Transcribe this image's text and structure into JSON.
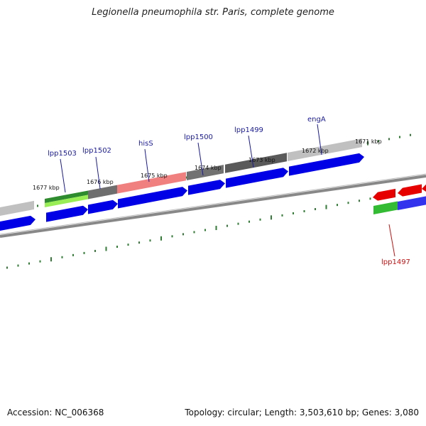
{
  "title": "Legionella pneumophila str. Paris, complete genome",
  "footer": {
    "accession": "Accession: NC_006368",
    "summary": "Topology: circular; Length: 3,503,610 bp; Genes: 3,080"
  },
  "kbp_labels": [
    {
      "kbp": 1671,
      "text": "1671 kbp"
    },
    {
      "kbp": 1672,
      "text": "1672 kbp"
    },
    {
      "kbp": 1673,
      "text": "1673 kbp"
    },
    {
      "kbp": 1674,
      "text": "1674 kbp"
    },
    {
      "kbp": 1675,
      "text": "1675 kbp"
    },
    {
      "kbp": 1676,
      "text": "1676 kbp"
    },
    {
      "kbp": 1677,
      "text": "1677 kbp"
    }
  ],
  "gene_labels": [
    {
      "name": "engA",
      "strand": "forward",
      "color": "#1a1aa0"
    },
    {
      "name": "lpp1499",
      "strand": "forward",
      "color": "#1a1aa0"
    },
    {
      "name": "lpp1500",
      "strand": "forward",
      "color": "#1a1aa0"
    },
    {
      "name": "hisS",
      "strand": "forward",
      "color": "#1a1aa0"
    },
    {
      "name": "lpp1502",
      "strand": "forward",
      "color": "#1a1aa0"
    },
    {
      "name": "lpp1503",
      "strand": "forward",
      "color": "#1a1aa0"
    },
    {
      "name": "lpp1497",
      "strand": "reverse",
      "color": "#cc1111"
    }
  ],
  "colors": {
    "forward_gene": "#0000e6",
    "reverse_gene": "#e60000",
    "tick": "#2e7d32",
    "backbone": "#777777",
    "cog_gray_light": "#c0c0c0",
    "cog_gray_dark": "#5a5a5a",
    "cog_pink": "#f08080",
    "cog_green": "#2e8b2e",
    "cog_lightgreen": "#99ee55"
  }
}
